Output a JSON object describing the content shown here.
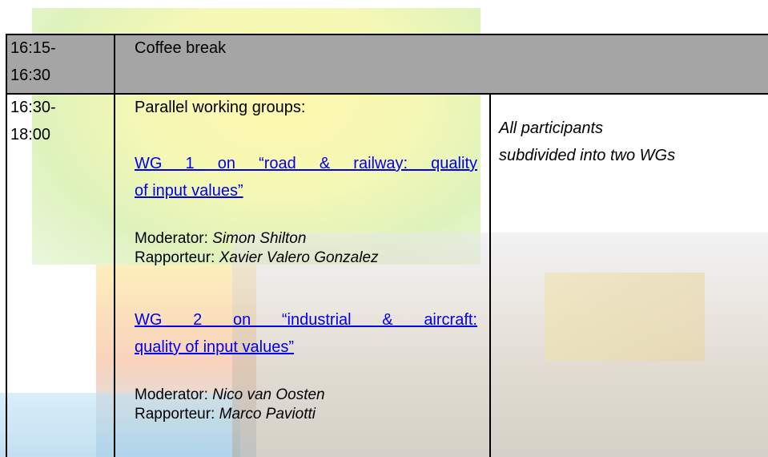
{
  "table": {
    "rows": [
      {
        "time": [
          "16:15-",
          "16:30"
        ],
        "session": "Coffee break"
      },
      {
        "time": [
          "16:30-",
          "18:00"
        ],
        "session": {
          "intro": "Parallel working groups:",
          "groups": [
            {
              "title": [
                "WG 1 on “road & railway: quality",
                "of input values”"
              ],
              "moderator_label": "Moderator:",
              "moderator": "Simon Shilton",
              "rapporteur_label": "Rapporteur:",
              "rapporteur": "Xavier Valero Gonzalez"
            },
            {
              "title": [
                "WG 2 on “industrial & aircraft:",
                "quality of input values”"
              ],
              "moderator_label": "Moderator:",
              "moderator": "Nico van Oosten",
              "rapporteur_label": "Rapporteur:",
              "rapporteur": "Marco Paviotti"
            }
          ]
        },
        "note": [
          "All participants",
          "subdivided into two WGs"
        ]
      }
    ]
  }
}
